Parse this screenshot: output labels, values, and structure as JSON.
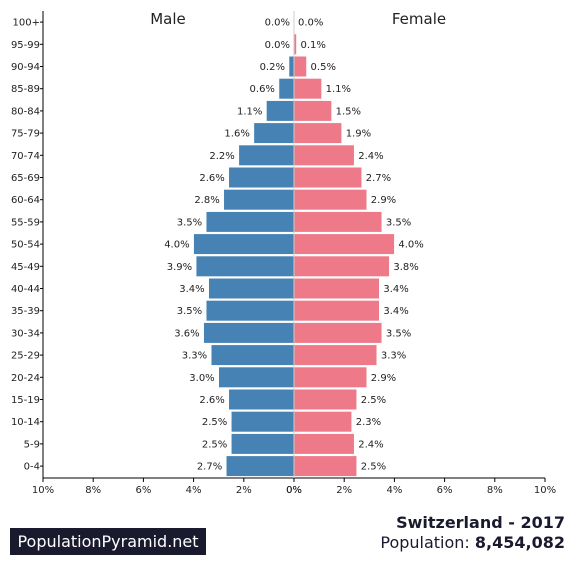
{
  "chart_data": {
    "type": "bar",
    "orientation": "horizontal-pyramid",
    "age_groups": [
      "100+",
      "95-99",
      "90-94",
      "85-89",
      "80-84",
      "75-79",
      "70-74",
      "65-69",
      "60-64",
      "55-59",
      "50-54",
      "45-49",
      "40-44",
      "35-39",
      "30-34",
      "25-29",
      "20-24",
      "15-19",
      "10-14",
      "5-9",
      "0-4"
    ],
    "series": [
      {
        "name": "Male",
        "color": "#4682b4",
        "values": [
          0.0,
          0.0,
          0.2,
          0.6,
          1.1,
          1.6,
          2.2,
          2.6,
          2.8,
          3.5,
          4.0,
          3.9,
          3.4,
          3.5,
          3.6,
          3.3,
          3.0,
          2.6,
          2.5,
          2.5,
          2.7
        ],
        "labels": [
          "0.0%",
          "0.0%",
          "0.2%",
          "0.6%",
          "1.1%",
          "1.6%",
          "2.2%",
          "2.6%",
          "2.8%",
          "3.5%",
          "4.0%",
          "3.9%",
          "3.4%",
          "3.5%",
          "3.6%",
          "3.3%",
          "3.0%",
          "2.6%",
          "2.5%",
          "2.5%",
          "2.7%"
        ]
      },
      {
        "name": "Female",
        "color": "#ee7989",
        "values": [
          0.0,
          0.1,
          0.5,
          1.1,
          1.5,
          1.9,
          2.4,
          2.7,
          2.9,
          3.5,
          4.0,
          3.8,
          3.4,
          3.4,
          3.5,
          3.3,
          2.9,
          2.5,
          2.3,
          2.4,
          2.5
        ],
        "labels": [
          "0.0%",
          "0.1%",
          "0.5%",
          "1.1%",
          "1.5%",
          "1.9%",
          "2.4%",
          "2.7%",
          "2.9%",
          "3.5%",
          "4.0%",
          "3.8%",
          "3.4%",
          "3.4%",
          "3.5%",
          "3.3%",
          "2.9%",
          "2.5%",
          "2.3%",
          "2.4%",
          "2.5%"
        ]
      }
    ],
    "male_ticks": [
      "10%",
      "8%",
      "6%",
      "4%",
      "2%",
      "0%"
    ],
    "female_ticks": [
      "0%",
      "2%",
      "4%",
      "6%",
      "8%",
      "10%"
    ],
    "xlim": [
      0,
      10
    ],
    "grid": false
  },
  "footer": {
    "brand": "PopulationPyramid.net",
    "country_year": "Switzerland - 2017",
    "population_label": "Population:",
    "population_value": "8,454,082"
  }
}
